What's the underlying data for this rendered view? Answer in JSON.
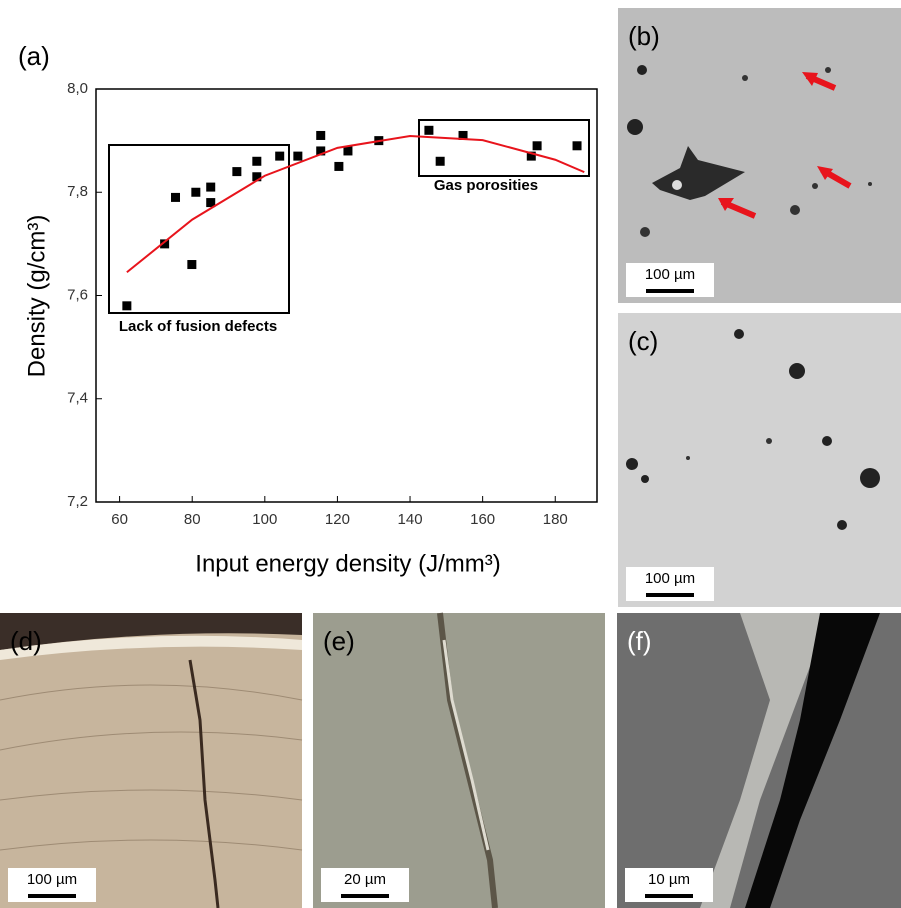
{
  "chart_data": {
    "type": "scatter",
    "panel_label": "(a)",
    "x_label": "Input energy density (J/mm³)",
    "y_label": "Density (g/cm³)",
    "xlim": [
      53.5,
      191.5
    ],
    "xticks": [
      60,
      80,
      100,
      120,
      140,
      160,
      180
    ],
    "ylim": [
      7.2,
      8.0
    ],
    "yticks": [
      {
        "value": 7.2,
        "label": "7,2"
      },
      {
        "value": 7.4,
        "label": "7,4"
      },
      {
        "value": 7.6,
        "label": "7,6"
      },
      {
        "value": 7.8,
        "label": "7,8"
      },
      {
        "value": 8.0,
        "label": "8,0"
      }
    ],
    "series": [
      {
        "type": "scatter",
        "color": "#000000",
        "x": [
          62,
          72.4,
          75.4,
          79.9,
          81,
          85.1,
          85.1,
          92.3,
          97.8,
          97.8,
          104.1,
          109.1,
          115.4,
          115.4,
          120.4,
          122.9,
          131.4,
          145.2,
          148.3,
          154.6,
          173.4,
          175,
          186
        ],
        "values": [
          7.58,
          7.7,
          7.79,
          7.66,
          7.8,
          7.81,
          7.78,
          7.84,
          7.86,
          7.83,
          7.87,
          7.87,
          7.91,
          7.88,
          7.85,
          7.88,
          7.9,
          7.92,
          7.86,
          7.91,
          7.87,
          7.89,
          7.89
        ]
      },
      {
        "type": "line",
        "color": "#e8141c",
        "x": [
          62,
          80,
          100,
          120,
          140,
          160,
          180,
          188
        ],
        "values": [
          7.645,
          7.747,
          7.832,
          7.886,
          7.909,
          7.901,
          7.863,
          7.839
        ]
      }
    ],
    "annotations": [
      "Lack of fusion defects",
      "Gas porosities"
    ]
  },
  "panels": [
    {
      "label": "(b)",
      "scale_bar": "100 µm"
    },
    {
      "label": "(c)",
      "scale_bar": "100 µm"
    },
    {
      "label": "(d)",
      "scale_bar": "100 µm"
    },
    {
      "label": "(e)",
      "scale_bar": "20 µm"
    },
    {
      "label": "(f)",
      "scale_bar": "10 µm"
    }
  ]
}
